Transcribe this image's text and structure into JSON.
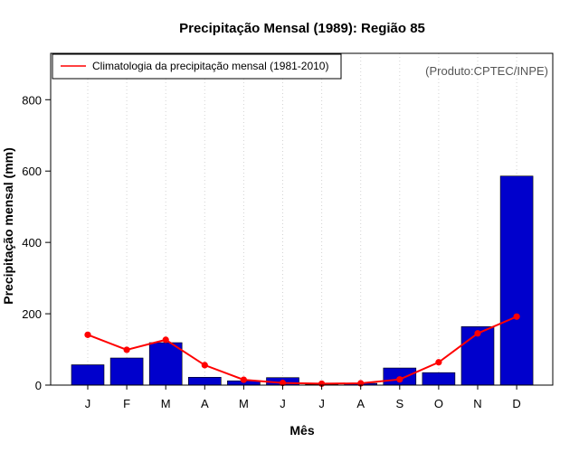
{
  "chart_data": {
    "type": "bar",
    "title": "Precipitação Mensal (1989): Região 85",
    "xlabel": "Mês",
    "ylabel": "Precipitação mensal (mm)",
    "categories": [
      "J",
      "F",
      "M",
      "A",
      "M",
      "J",
      "J",
      "A",
      "S",
      "O",
      "N",
      "D"
    ],
    "ylim": [
      0,
      930
    ],
    "yticks": [
      0,
      200,
      400,
      600,
      800
    ],
    "grid": "vertical dotted",
    "series": [
      {
        "name": "Precipitação mensal (1989)",
        "type": "bar",
        "color": "#0000cc",
        "values": [
          57,
          76,
          119,
          22,
          12,
          21,
          2,
          5,
          48,
          35,
          164,
          586
        ]
      },
      {
        "name": "Climatologia da precipitação mensal (1981-2010)",
        "type": "line",
        "color": "#ff0000",
        "values": [
          141,
          99,
          127,
          56,
          15,
          6,
          4,
          5,
          16,
          64,
          145,
          192
        ]
      }
    ],
    "legend": {
      "position": "top-left",
      "label": "Climatologia da precipitação mensal (1981-2010)"
    },
    "credit": "(Produto:CPTEC/INPE)"
  }
}
